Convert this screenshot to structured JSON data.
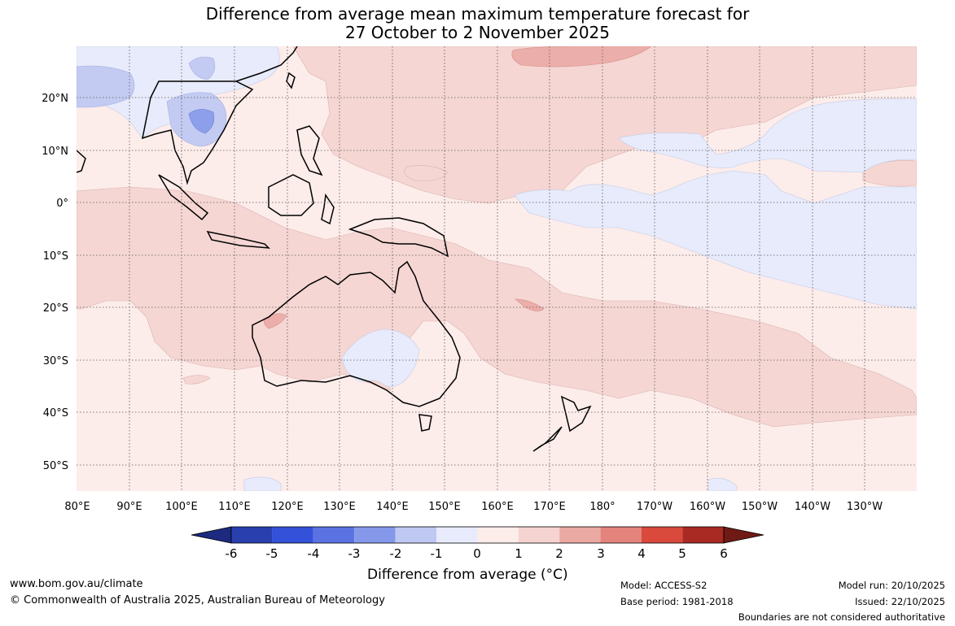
{
  "title": {
    "line1": "Difference from average mean maximum temperature forecast for",
    "line2": "27 October to 2 November 2025"
  },
  "map": {
    "lon_labels": [
      "80°E",
      "90°E",
      "100°E",
      "110°E",
      "120°E",
      "130°E",
      "140°E",
      "150°E",
      "160°E",
      "170°E",
      "180°",
      "170°W",
      "160°W",
      "150°W",
      "140°W",
      "130°W"
    ],
    "lat_labels": [
      "20°N",
      "10°N",
      "0°",
      "10°S",
      "20°S",
      "30°S",
      "40°S",
      "50°S"
    ]
  },
  "colorbar": {
    "colors": [
      "#1c2b7f",
      "#2a3fae",
      "#3351d9",
      "#5b72e3",
      "#8598ea",
      "#bec8f2",
      "#e7ebfb",
      "#fcecea",
      "#f5d3d0",
      "#eba9a4",
      "#e3837c",
      "#d9493c",
      "#a82a22",
      "#6f1a15"
    ],
    "tick_labels": [
      "-6",
      "-5",
      "-4",
      "-3",
      "-2",
      "-1",
      "0",
      "1",
      "2",
      "3",
      "4",
      "5",
      "6"
    ],
    "title": "Difference from average (°C)"
  },
  "footer": {
    "website": "www.bom.gov.au/climate",
    "copyright": "© Commonwealth of Australia 2025, Australian Bureau of Meteorology",
    "model": "Model: ACCESS-S2",
    "base_period": "Base period: 1981-2018",
    "model_run": "Model run: 20/10/2025",
    "issued": "Issued: 22/10/2025",
    "disclaimer": "Boundaries are not considered authoritative"
  }
}
